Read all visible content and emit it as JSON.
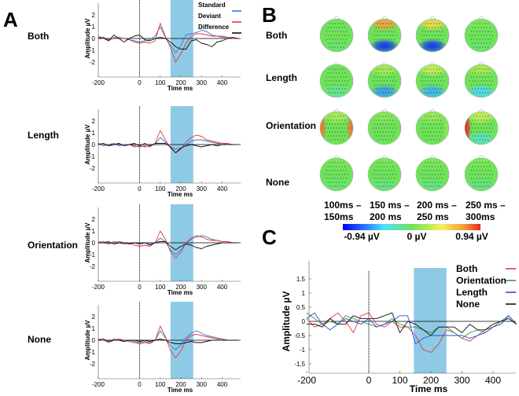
{
  "panels": {
    "a": "A",
    "b": "B",
    "c": "C"
  },
  "colors": {
    "standard": "#3a78d8",
    "deviant": "#e8383a",
    "difference": "#111111",
    "both": "#e8383a",
    "orientation": "#3a9a3a",
    "length": "#2050e0",
    "none": "#111111",
    "window": "#8ecae6"
  },
  "chart_data": [
    {
      "type": "line",
      "panel": "A",
      "xlabel": "Time ms",
      "ylabel": "Amplitude µV",
      "xlim": [
        -200,
        480
      ],
      "ylim": [
        -3,
        3
      ],
      "xticks": [
        -200,
        0,
        100,
        200,
        300,
        400
      ],
      "yticks": [
        2,
        1,
        0,
        -1,
        -2
      ],
      "highlight_window": [
        150,
        260
      ],
      "legend": [
        "Standard",
        "Deviant",
        "Difference"
      ],
      "x": [
        -200,
        -175,
        -150,
        -125,
        -100,
        -75,
        -50,
        -25,
        0,
        25,
        50,
        75,
        100,
        125,
        150,
        175,
        200,
        225,
        250,
        275,
        300,
        325,
        350,
        375,
        400,
        425,
        450,
        475
      ],
      "plots": [
        {
          "condition": "Both",
          "series": [
            {
              "name": "Standard",
              "values": [
                0.1,
                0,
                -0.1,
                0,
                0.1,
                0,
                -0.1,
                -0.2,
                -0.3,
                -0.2,
                -0.1,
                0.2,
                1.0,
                0.1,
                -0.6,
                -1.2,
                -0.6,
                0.3,
                0.4,
                0.5,
                0.7,
                0.6,
                0.3,
                0.2,
                0.2,
                0.1,
                0,
                0
              ]
            },
            {
              "name": "Deviant",
              "values": [
                0.2,
                0,
                -0.2,
                0.1,
                0,
                0,
                -0.1,
                -0.3,
                -0.4,
                -0.3,
                -0.4,
                -0.2,
                1.3,
                0.2,
                -0.8,
                -2.0,
                -1.3,
                -0.4,
                0.2,
                0.4,
                0.4,
                0.3,
                0.2,
                0.2,
                0.1,
                0.1,
                0,
                0
              ]
            },
            {
              "name": "Difference",
              "values": [
                0,
                0.1,
                -0.2,
                0.3,
                0,
                -0.3,
                0,
                0.2,
                0.3,
                -0.1,
                -0.2,
                0,
                0.1,
                0,
                -0.3,
                -0.7,
                -0.9,
                -0.9,
                -0.2,
                -0.1,
                -0.4,
                -0.5,
                -0.7,
                -0.3,
                -0.2,
                0,
                0.1,
                0
              ]
            }
          ]
        },
        {
          "condition": "Length",
          "series": [
            {
              "name": "Standard",
              "values": [
                0.1,
                -0.1,
                0,
                0.1,
                -0.1,
                0,
                0,
                -0.2,
                -0.1,
                -0.2,
                -0.1,
                0,
                0.6,
                0.2,
                -0.2,
                -0.4,
                -0.3,
                0,
                0.3,
                0.4,
                0.4,
                0.3,
                0.2,
                0.1,
                0.1,
                0,
                0,
                0
              ]
            },
            {
              "name": "Deviant",
              "values": [
                0.1,
                0,
                -0.1,
                0,
                0.1,
                -0.1,
                0,
                -0.1,
                -0.2,
                -0.1,
                -0.2,
                0.1,
                1.2,
                0.4,
                -0.3,
                -0.7,
                -0.4,
                0.2,
                0.6,
                0.8,
                0.7,
                0.4,
                0.3,
                0.2,
                0.1,
                0.1,
                0,
                0
              ]
            },
            {
              "name": "Difference",
              "values": [
                0,
                0.1,
                -0.1,
                0,
                0.1,
                -0.1,
                0,
                0.1,
                -0.1,
                0.1,
                -0.1,
                0.1,
                0.1,
                0.1,
                -0.2,
                -0.7,
                -0.3,
                -0.1,
                0,
                -0.1,
                -0.2,
                -0.1,
                0,
                -0.1,
                0,
                0,
                0,
                0
              ]
            }
          ]
        },
        {
          "condition": "Orientation",
          "series": [
            {
              "name": "Standard",
              "values": [
                0,
                0.1,
                -0.1,
                0,
                0.1,
                0,
                -0.1,
                0,
                -0.1,
                0,
                -0.1,
                0,
                0.4,
                0.1,
                -0.6,
                -1.0,
                -0.6,
                0,
                0.3,
                0.5,
                0.6,
                0.5,
                0.3,
                0.2,
                0.1,
                0.1,
                0,
                0
              ]
            },
            {
              "name": "Deviant",
              "values": [
                0.1,
                0,
                -0.1,
                0.1,
                0,
                -0.1,
                0,
                -0.2,
                -0.3,
                -0.2,
                -0.3,
                0,
                1.0,
                0.3,
                -0.8,
                -1.3,
                -0.8,
                0,
                0.4,
                0.6,
                0.5,
                0.3,
                0.2,
                0.2,
                0.1,
                0.1,
                0,
                0
              ]
            },
            {
              "name": "Difference",
              "values": [
                0,
                0,
                0.1,
                -0.1,
                0,
                0,
                -0.1,
                0,
                -0.1,
                0,
                -0.2,
                0,
                0.1,
                0.1,
                -0.3,
                -0.6,
                -0.3,
                -0.1,
                -0.2,
                -0.4,
                -0.5,
                -0.3,
                -0.2,
                -0.1,
                0,
                0,
                0,
                0
              ]
            }
          ]
        },
        {
          "condition": "None",
          "series": [
            {
              "name": "Standard",
              "values": [
                0.1,
                0,
                -0.1,
                0.1,
                0,
                -0.1,
                0,
                -0.1,
                -0.2,
                -0.1,
                -0.2,
                0,
                0.8,
                0.2,
                -0.5,
                -0.8,
                -0.4,
                0.2,
                0.6,
                0.8,
                0.6,
                0.4,
                0.3,
                0.2,
                0.1,
                0,
                0,
                0
              ]
            },
            {
              "name": "Deviant",
              "values": [
                0.1,
                0,
                -0.2,
                0,
                0.1,
                0,
                -0.1,
                -0.2,
                -0.3,
                -0.2,
                -0.3,
                0,
                1.2,
                0.3,
                -0.9,
                -1.5,
                -0.9,
                0,
                0.4,
                0.5,
                0.4,
                0.3,
                0.2,
                0.1,
                0.1,
                0,
                0,
                0
              ]
            },
            {
              "name": "Difference",
              "values": [
                0,
                0.1,
                -0.1,
                0,
                0,
                -0.1,
                0,
                0,
                -0.1,
                0,
                -0.1,
                0,
                0.1,
                0,
                -0.2,
                -0.3,
                -0.3,
                -0.2,
                -0.1,
                -0.2,
                -0.2,
                -0.1,
                0,
                0,
                0,
                0,
                0,
                0
              ]
            }
          ]
        }
      ]
    },
    {
      "type": "heatmap",
      "panel": "B",
      "rows": [
        "Both",
        "Length",
        "Orientation",
        "None"
      ],
      "columns": [
        [
          "100ms –",
          "150ms"
        ],
        [
          "150 ms –",
          "200 ms"
        ],
        [
          "200 ms –",
          "250 ms"
        ],
        [
          "250 ms –",
          "300ms"
        ]
      ],
      "colorbar": {
        "min": -0.94,
        "max": 0.94,
        "labels": [
          "-0.94 µV",
          "0 µV",
          "0.94 µV"
        ]
      },
      "maps_note": "approximate regional amplitudes [frontal, posterior, left, right] in µV",
      "maps": [
        [
          [
            0,
            -0.05,
            0,
            0
          ],
          [
            0.7,
            -0.8,
            0,
            0
          ],
          [
            0.5,
            -0.8,
            0,
            0
          ],
          [
            0.05,
            -0.05,
            0,
            0
          ]
        ],
        [
          [
            0,
            -0.15,
            0,
            0
          ],
          [
            0.2,
            -0.55,
            0,
            0
          ],
          [
            0.3,
            -0.5,
            0,
            0
          ],
          [
            0.2,
            -0.4,
            0,
            0
          ]
        ],
        [
          [
            0.2,
            0,
            0.8,
            0.8
          ],
          [
            0.1,
            0,
            0,
            0
          ],
          [
            0.15,
            0,
            0,
            0.1
          ],
          [
            0.3,
            -0.25,
            0.94,
            0
          ]
        ],
        [
          [
            0.05,
            -0.05,
            0,
            0
          ],
          [
            0.05,
            -0.1,
            0,
            0
          ],
          [
            0.05,
            -0.1,
            0,
            0
          ],
          [
            0.05,
            -0.1,
            0,
            0
          ]
        ]
      ]
    },
    {
      "type": "line",
      "panel": "C",
      "xlabel": "Time ms",
      "ylabel": "Amplitude µV",
      "xlim": [
        -200,
        480
      ],
      "ylim": [
        -1.8,
        1.8
      ],
      "xticks": [
        -200,
        0,
        100,
        200,
        300,
        400
      ],
      "yticks": [
        {
          "v": 1.5,
          "label": "1,5"
        },
        {
          "v": 1,
          "label": "1"
        },
        {
          "v": 0.5,
          "label": "0.5"
        },
        {
          "v": 0,
          "label": "0"
        },
        {
          "v": -0.5,
          "label": "-0.5"
        },
        {
          "v": -1,
          "label": "-1"
        },
        {
          "v": -1.5,
          "label": "-1,5"
        }
      ],
      "highlight_window": [
        145,
        250
      ],
      "legend": [
        "Both",
        "Orientation",
        "Length",
        "None"
      ],
      "x": [
        -200,
        -175,
        -150,
        -125,
        -100,
        -75,
        -50,
        -25,
        0,
        25,
        50,
        75,
        100,
        125,
        150,
        175,
        200,
        225,
        250,
        275,
        300,
        325,
        350,
        375,
        400,
        425,
        450,
        475
      ],
      "series": [
        {
          "name": "Both",
          "values": [
            0.1,
            -0.2,
            -0.1,
            0.1,
            0.3,
            0,
            -0.4,
            0.2,
            0.3,
            -0.1,
            -0.2,
            0,
            -0.2,
            -0.2,
            -0.5,
            -1.0,
            -1.1,
            -0.8,
            -0.3,
            -0.4,
            -0.6,
            -0.7,
            -0.5,
            -0.3,
            -0.2,
            -0.1,
            0.2,
            -0.1
          ]
        },
        {
          "name": "Orientation",
          "values": [
            0.3,
            0.1,
            -0.1,
            0,
            -0.1,
            0.2,
            0.1,
            0,
            -0.1,
            -0.2,
            -0.1,
            0.1,
            -0.1,
            -0.2,
            -0.2,
            -0.3,
            -0.4,
            -0.2,
            -0.2,
            -0.4,
            -0.6,
            -0.4,
            -0.3,
            -0.4,
            -0.2,
            0,
            0.2,
            -0.1
          ]
        },
        {
          "name": "Length",
          "values": [
            0.1,
            0.3,
            -0.1,
            -0.3,
            -0.1,
            0.1,
            0,
            -0.1,
            0.1,
            -0.2,
            -0.1,
            0,
            0.2,
            0.2,
            -0.8,
            -0.6,
            -0.5,
            -0.5,
            -0.5,
            -0.5,
            -0.5,
            -0.6,
            -0.5,
            -0.4,
            -0.2,
            -0.1,
            0.2,
            -0.1
          ]
        },
        {
          "name": "None",
          "values": [
            -0.1,
            -0.1,
            -0.2,
            0.1,
            -0.1,
            -0.1,
            0.2,
            0.1,
            0.1,
            0.1,
            0.2,
            0.3,
            -0.4,
            0,
            -0.1,
            -0.3,
            -0.5,
            -0.2,
            -0.2,
            -0.2,
            -0.4,
            -0.1,
            -0.3,
            -0.3,
            -0.1,
            0,
            0.1,
            -0.1
          ]
        }
      ]
    }
  ]
}
